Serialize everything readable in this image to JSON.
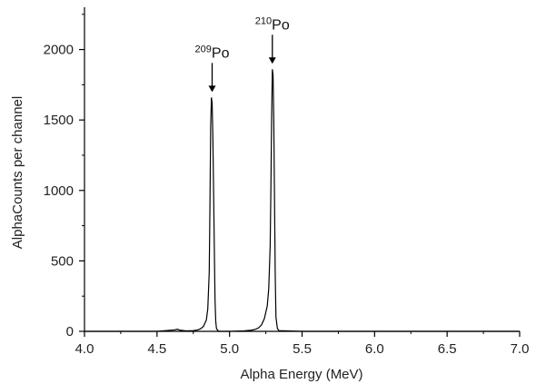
{
  "chart_data": {
    "type": "line",
    "title": "",
    "xlabel": "Alpha Energy (MeV)",
    "ylabel": "AlphaCounts per channel",
    "xlim": [
      4.0,
      7.0
    ],
    "ylim": [
      0,
      2300
    ],
    "x_ticks": [
      "4.0",
      "4.5",
      "5.0",
      "5.5",
      "6.0",
      "6.5",
      "7.0"
    ],
    "y_ticks": [
      "0",
      "500",
      "1000",
      "1500",
      "2000"
    ],
    "grid": false,
    "legend": "none",
    "line_color": "#000000",
    "series": [
      {
        "x": [
          4.0,
          4.5,
          4.62,
          4.64,
          4.66,
          4.7,
          4.75,
          4.78,
          4.8,
          4.82,
          4.84,
          4.85,
          4.86,
          4.865,
          4.87,
          4.875,
          4.88,
          4.885,
          4.89,
          4.895,
          4.9,
          4.905,
          4.91,
          4.92,
          4.93,
          5.0,
          5.1,
          5.15,
          5.18,
          5.2,
          5.22,
          5.24,
          5.26,
          5.27,
          5.28,
          5.285,
          5.29,
          5.295,
          5.3,
          5.305,
          5.31,
          5.315,
          5.32,
          5.33,
          5.34,
          5.5,
          6.0,
          6.5,
          7.0
        ],
        "y": [
          0,
          0,
          10,
          15,
          8,
          3,
          5,
          10,
          18,
          35,
          80,
          160,
          420,
          900,
          1450,
          1660,
          1620,
          1380,
          1000,
          600,
          220,
          70,
          20,
          5,
          0,
          0,
          3,
          8,
          15,
          25,
          45,
          90,
          180,
          300,
          600,
          1000,
          1500,
          1860,
          1820,
          1500,
          950,
          400,
          100,
          20,
          5,
          0,
          0,
          0,
          0
        ]
      }
    ],
    "annotations": [
      {
        "sup": "209",
        "text": "Po",
        "x": 4.88,
        "y": 1660
      },
      {
        "sup": "210",
        "text": "Po",
        "x": 5.295,
        "y": 1860
      }
    ]
  }
}
